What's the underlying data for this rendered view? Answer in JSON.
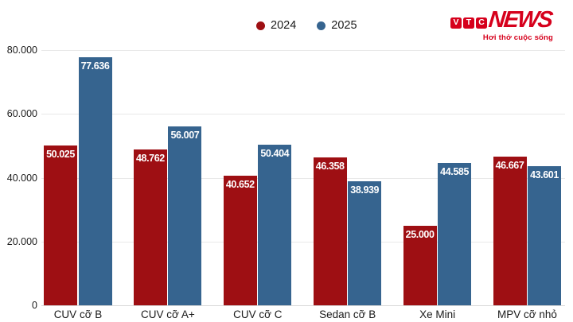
{
  "brand": {
    "letters": [
      "V",
      "T",
      "C"
    ],
    "wordmark": "NEWS",
    "tagline": "Hơi thở cuộc sống",
    "red": "#d6001c"
  },
  "legend": {
    "items": [
      {
        "label": "2024",
        "color": "#9e0f13"
      },
      {
        "label": "2025",
        "color": "#36648f"
      }
    ]
  },
  "chart_data": {
    "type": "bar",
    "title": "",
    "xlabel": "",
    "ylabel": "",
    "categories": [
      "CUV cỡ B",
      "CUV cỡ A+",
      "CUV cỡ C",
      "Sedan cỡ B",
      "Xe Mini",
      "MPV cỡ nhỏ"
    ],
    "series": [
      {
        "name": "2024",
        "color": "#9e0f13",
        "values": [
          50025,
          48762,
          40652,
          46358,
          25000,
          46667
        ],
        "labels": [
          "50.025",
          "48.762",
          "40.652",
          "46.358",
          "25.000",
          "46.667"
        ]
      },
      {
        "name": "2025",
        "color": "#36648f",
        "values": [
          77636,
          56007,
          50404,
          38939,
          44585,
          43601
        ],
        "labels": [
          "77.636",
          "56.007",
          "50.404",
          "38.939",
          "44.585",
          "43.601"
        ]
      }
    ],
    "y_ticks": [
      {
        "value": 0,
        "label": "0"
      },
      {
        "value": 20000,
        "label": "20.000"
      },
      {
        "value": 40000,
        "label": "40.000"
      },
      {
        "value": 60000,
        "label": "60.000"
      },
      {
        "value": 80000,
        "label": "80.000"
      }
    ],
    "ylim": [
      0,
      80000
    ],
    "grid": true,
    "legend_position": "top-center"
  },
  "colors": {
    "grid": "#e9e9e9",
    "baseline": "#d8d8d8",
    "text": "#1a1a1a",
    "background": "#ffffff",
    "value_label": "#ffffff"
  }
}
